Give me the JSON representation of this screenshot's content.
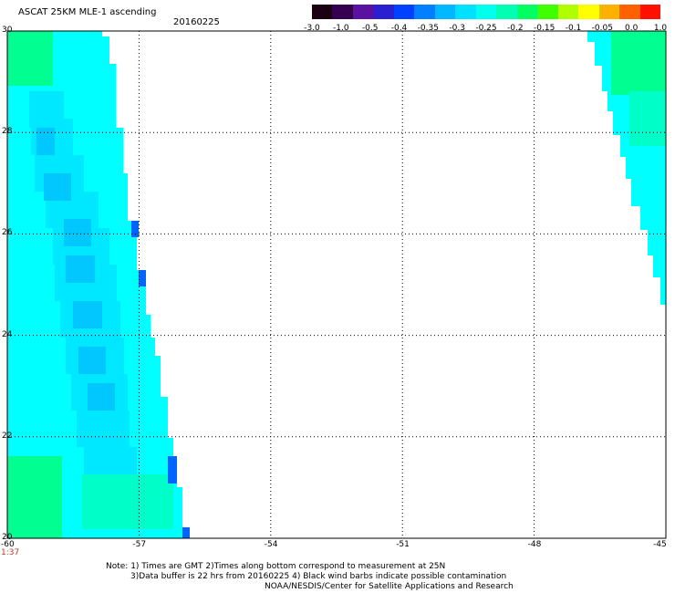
{
  "header": {
    "title": "ASCAT 25KM MLE-1 ascending",
    "date": "20160225"
  },
  "colorbar": {
    "colors": [
      "#1a0010",
      "#350050",
      "#5a10a0",
      "#2a20d0",
      "#0040ff",
      "#0080ff",
      "#00b8ff",
      "#00e0ff",
      "#00ffee",
      "#00ffb0",
      "#00ff60",
      "#40ff00",
      "#b0ff00",
      "#ffff00",
      "#ffb000",
      "#ff6000",
      "#ff1000"
    ],
    "labels": [
      "-3.0",
      "-1.0",
      "-0.5",
      "-0.4",
      "-0.35",
      "-0.3",
      "-0.25",
      "-0.2",
      "-0.15",
      "-0.1",
      "-0.05",
      "0.0",
      "1.0"
    ]
  },
  "map": {
    "lon_range": [
      -60,
      -45
    ],
    "lat_range": [
      20,
      30
    ],
    "lon_labels": [
      "-60",
      "-57",
      "-54",
      "-51",
      "-48",
      "-45"
    ],
    "lat_labels": [
      "30",
      "28",
      "26",
      "24",
      "22",
      "20"
    ],
    "grid": "dotted",
    "swath_colors": {
      "cyan": "#00ffff",
      "light_blue": "#00e8ff",
      "mid_blue": "#00c8ff",
      "green": "#00ff90",
      "edge_blue": "#0064ff"
    }
  },
  "time_label": "1:37",
  "notes": {
    "line1": "Note: 1) Times are GMT 2)Times along bottom correspond to measurement at 25N",
    "line2": "3)Data buffer is 22 hrs from 20160225 4) Black wind barbs indicate possible contamination",
    "line3": "NOAA/NESDIS/Center for Satellite Applications and Research"
  }
}
